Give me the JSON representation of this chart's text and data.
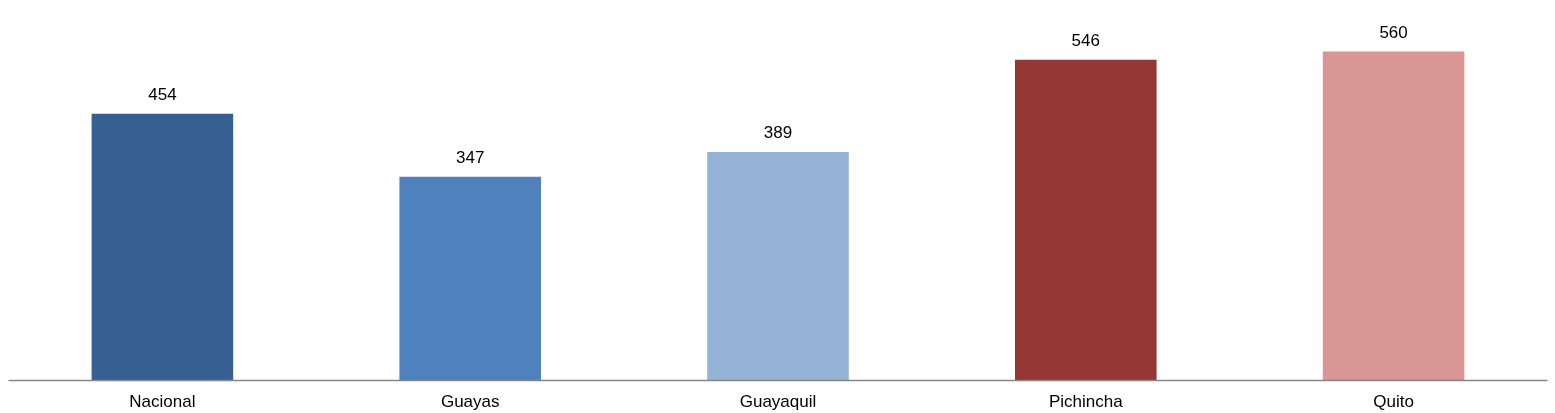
{
  "chart_data": {
    "type": "bar",
    "categories": [
      "Nacional",
      "Guayas",
      "Guayaquil",
      "Pichincha",
      "Quito"
    ],
    "values": [
      454,
      347,
      389,
      546,
      560
    ],
    "colors": [
      "#376092",
      "#4f81bd",
      "#95b3d7",
      "#953735",
      "#da9694"
    ],
    "data_labels": true,
    "tick_labels": "x",
    "grid": false
  }
}
